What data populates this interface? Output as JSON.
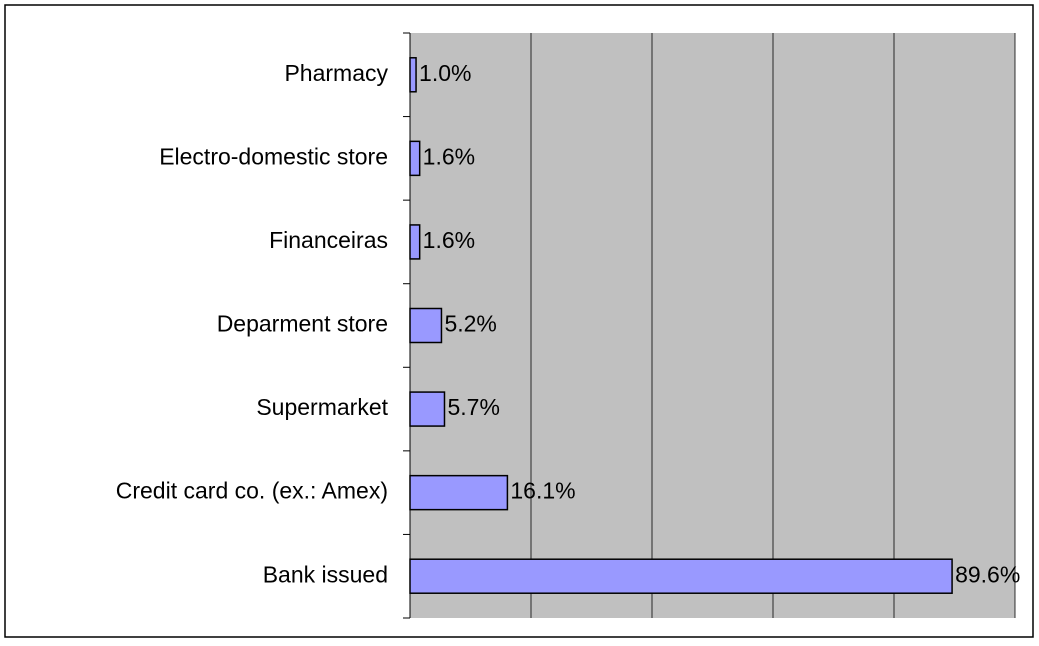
{
  "chart_data": {
    "type": "hbar",
    "categories": [
      "Pharmacy",
      "Electro-domestic store",
      "Financeiras",
      "Deparment store",
      "Supermarket",
      "Credit card co. (ex.: Amex)",
      "Bank issued"
    ],
    "values": [
      1.0,
      1.6,
      1.6,
      5.2,
      5.7,
      16.1,
      89.6
    ],
    "value_labels": [
      "1.0%",
      "1.6%",
      "1.6%",
      "5.2%",
      "5.7%",
      "16.1%",
      "89.6%"
    ],
    "color": "#9999ff",
    "xlim": [
      0,
      100
    ],
    "xticks": [
      0,
      20,
      40,
      60,
      80,
      100
    ],
    "grid": true
  }
}
